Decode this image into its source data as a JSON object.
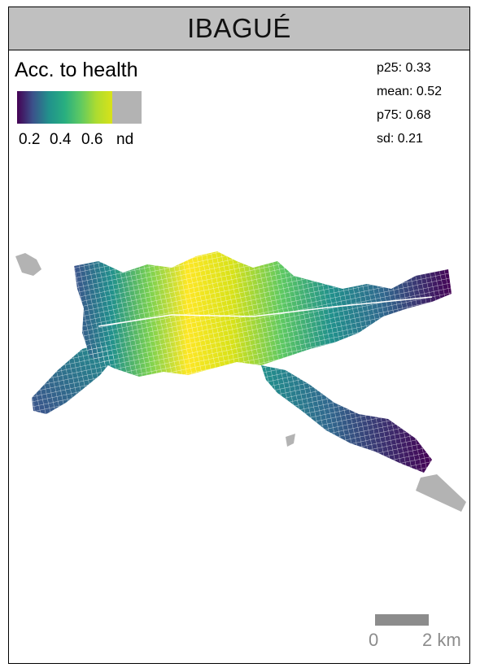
{
  "map": {
    "title": "IBAGUÉ",
    "legend": {
      "title": "Acc. to health",
      "ticks": [
        "0.2",
        "0.4",
        "0.6",
        "nd"
      ],
      "colors": [
        "#440154",
        "#3b528b",
        "#21918c",
        "#5ec962",
        "#d8e219"
      ],
      "nd_color": "#b3b3b3"
    },
    "stats": {
      "p25": "p25: 0.33",
      "mean": "mean: 0.52",
      "p75": "p75: 0.68",
      "sd": "sd: 0.21"
    },
    "scale": {
      "start": "0",
      "end": "2 km"
    }
  }
}
